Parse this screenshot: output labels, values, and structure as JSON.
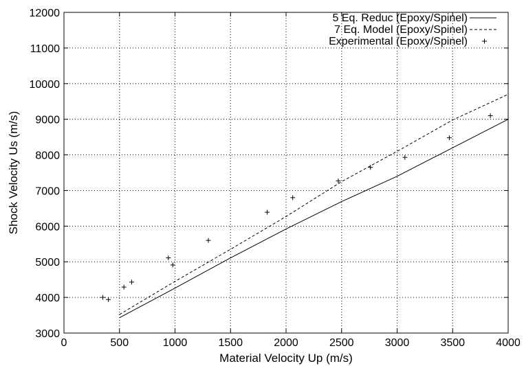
{
  "chart_data": {
    "type": "line",
    "title": "",
    "xlabel": "Material Velocity Up (m/s)",
    "ylabel": "Shock Velocity Us (m/s)",
    "xlim": [
      0,
      4000
    ],
    "ylim": [
      3000,
      12000
    ],
    "xticks": [
      0,
      500,
      1000,
      1500,
      2000,
      2500,
      3000,
      3500,
      4000
    ],
    "yticks": [
      3000,
      4000,
      5000,
      6000,
      7000,
      8000,
      9000,
      10000,
      11000,
      12000
    ],
    "grid": true,
    "legend_position": "top-right",
    "series": [
      {
        "name": "5 Eq. Reduc (Epoxy/Spinel)",
        "style": "solid",
        "x": [
          500,
          1000,
          1500,
          2000,
          2500,
          3000,
          3500,
          4000
        ],
        "y": [
          3430,
          4260,
          5110,
          5920,
          6690,
          7400,
          8200,
          9000
        ]
      },
      {
        "name": "7 Eq. Model (Epoxy/Spinel)",
        "style": "dashed",
        "x": [
          500,
          1000,
          1500,
          2000,
          2500,
          3000,
          3500,
          4000
        ],
        "y": [
          3520,
          4450,
          5350,
          6270,
          7250,
          8100,
          8980,
          9700
        ]
      },
      {
        "name": "Experimental (Epoxy/Spinel)",
        "style": "points",
        "x": [
          350,
          400,
          540,
          610,
          940,
          980,
          1300,
          1830,
          2060,
          2470,
          2760,
          3070,
          3470,
          3840
        ],
        "y": [
          4000,
          3940,
          4290,
          4430,
          5110,
          4910,
          5600,
          6390,
          6800,
          7270,
          7650,
          7930,
          8480,
          9100
        ]
      }
    ]
  }
}
